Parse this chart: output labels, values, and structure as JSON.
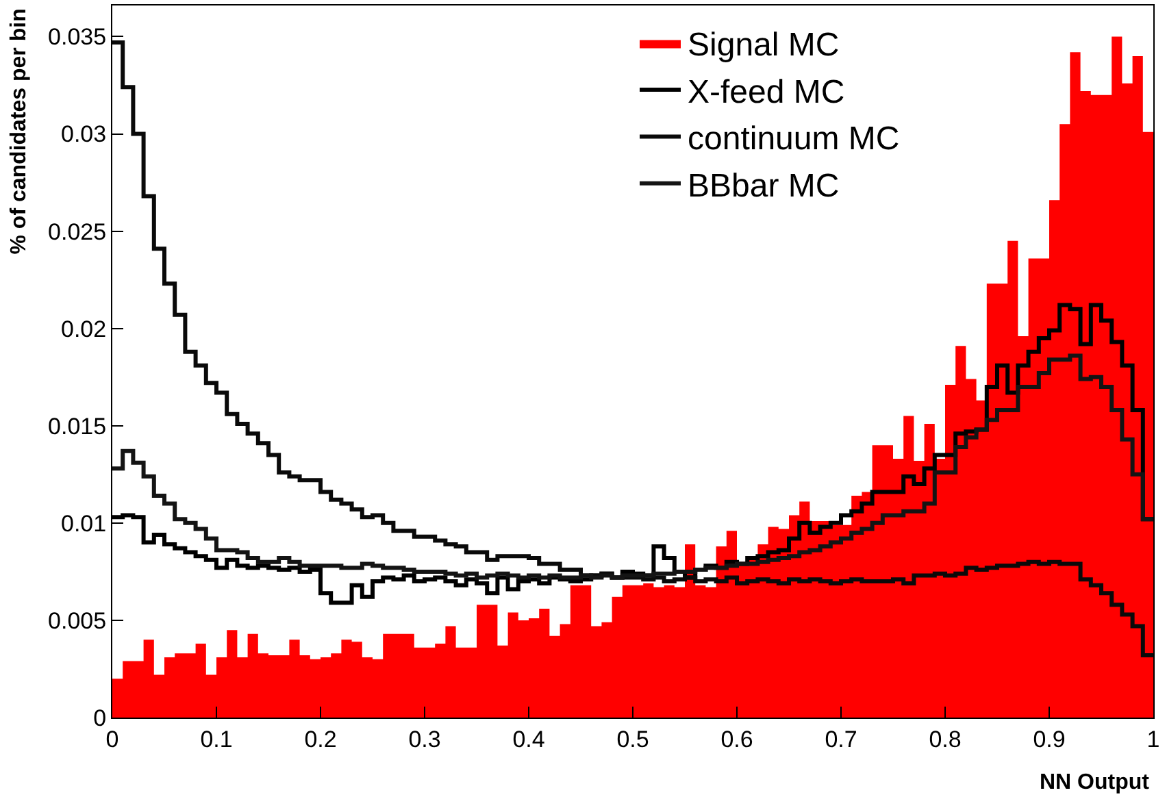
{
  "chart_data": {
    "type": "histogram",
    "xlabel": "NN Output",
    "ylabel": "% of candidates per bin",
    "bins": [
      0,
      0.01,
      0.02,
      0.03,
      0.04,
      0.05,
      0.06,
      0.07,
      0.08,
      0.09,
      0.1,
      0.11,
      0.12,
      0.13,
      0.14,
      0.15,
      0.16,
      0.17,
      0.18,
      0.19,
      0.2,
      0.21,
      0.22,
      0.23,
      0.24,
      0.25,
      0.26,
      0.27,
      0.28,
      0.29,
      0.3,
      0.31,
      0.32,
      0.33,
      0.34,
      0.35,
      0.36,
      0.37,
      0.38,
      0.39,
      0.4,
      0.41,
      0.42,
      0.43,
      0.44,
      0.45,
      0.46,
      0.47,
      0.48,
      0.49,
      0.5,
      0.51,
      0.52,
      0.53,
      0.54,
      0.55,
      0.56,
      0.57,
      0.58,
      0.59,
      0.6,
      0.61,
      0.62,
      0.63,
      0.64,
      0.65,
      0.66,
      0.67,
      0.68,
      0.69,
      0.7,
      0.71,
      0.72,
      0.73,
      0.74,
      0.75,
      0.76,
      0.77,
      0.78,
      0.79,
      0.8,
      0.81,
      0.82,
      0.83,
      0.84,
      0.85,
      0.86,
      0.87,
      0.88,
      0.89,
      0.9,
      0.91,
      0.92,
      0.93,
      0.94,
      0.95,
      0.96,
      0.97,
      0.98,
      0.99,
      1
    ],
    "series": [
      {
        "name": "Signal MC",
        "color": "#ff0000",
        "values": [
          0.002,
          0.0029,
          0.0029,
          0.004,
          0.0022,
          0.0031,
          0.0033,
          0.0033,
          0.0038,
          0.0022,
          0.0031,
          0.0045,
          0.0031,
          0.0043,
          0.0033,
          0.0032,
          0.0032,
          0.004,
          0.0032,
          0.003,
          0.0031,
          0.0033,
          0.004,
          0.0039,
          0.0031,
          0.003,
          0.0043,
          0.0043,
          0.0043,
          0.0036,
          0.0036,
          0.0038,
          0.0047,
          0.0036,
          0.0036,
          0.0058,
          0.0058,
          0.0037,
          0.0054,
          0.005,
          0.0051,
          0.0056,
          0.0042,
          0.0048,
          0.0068,
          0.0068,
          0.0047,
          0.0049,
          0.0062,
          0.0068,
          0.0068,
          0.0069,
          0.0067,
          0.0068,
          0.0067,
          0.0089,
          0.0068,
          0.0067,
          0.0088,
          0.0096,
          0.008,
          0.0081,
          0.0089,
          0.0098,
          0.0097,
          0.0104,
          0.0111,
          0.0101,
          0.0101,
          0.0099,
          0.0099,
          0.0114,
          0.0116,
          0.014,
          0.014,
          0.0133,
          0.0155,
          0.0132,
          0.0151,
          0.0133,
          0.0171,
          0.0191,
          0.0174,
          0.0163,
          0.0223,
          0.0223,
          0.0245,
          0.0196,
          0.0236,
          0.0236,
          0.0266,
          0.0305,
          0.0342,
          0.0322,
          0.032,
          0.032,
          0.035,
          0.0326,
          0.034,
          0.0301
        ]
      },
      {
        "name": "X-feed MC",
        "color": "#000000",
        "values": [
          0.0103,
          0.0104,
          0.0103,
          0.009,
          0.0094,
          0.0089,
          0.0087,
          0.0085,
          0.0083,
          0.0081,
          0.0077,
          0.0081,
          0.0078,
          0.0077,
          0.0078,
          0.0077,
          0.0076,
          0.0077,
          0.0075,
          0.0076,
          0.0064,
          0.0059,
          0.0059,
          0.0068,
          0.0062,
          0.007,
          0.0072,
          0.0071,
          0.0073,
          0.007,
          0.0071,
          0.0072,
          0.007,
          0.0068,
          0.0071,
          0.0069,
          0.0064,
          0.0072,
          0.0066,
          0.007,
          0.0071,
          0.0069,
          0.0072,
          0.0071,
          0.007,
          0.0071,
          0.0073,
          0.0074,
          0.0072,
          0.0075,
          0.0074,
          0.0073,
          0.0088,
          0.0082,
          0.0075,
          0.0072,
          0.0076,
          0.0078,
          0.0077,
          0.008,
          0.0079,
          0.0082,
          0.0083,
          0.0085,
          0.0086,
          0.0092,
          0.01,
          0.0095,
          0.0098,
          0.01,
          0.0104,
          0.0106,
          0.011,
          0.0116,
          0.0116,
          0.0116,
          0.0124,
          0.012,
          0.0128,
          0.0135,
          0.0135,
          0.0146,
          0.0147,
          0.0148,
          0.017,
          0.0181,
          0.0167,
          0.0181,
          0.0188,
          0.0195,
          0.0199,
          0.0212,
          0.021,
          0.0192,
          0.0212,
          0.0204,
          0.0193,
          0.0181,
          0.0158,
          0.0102
        ]
      },
      {
        "name": "continuum MC",
        "color": "#0a0a0a",
        "values": [
          0.0347,
          0.0324,
          0.03,
          0.0268,
          0.0241,
          0.0223,
          0.0207,
          0.0188,
          0.0181,
          0.0172,
          0.0167,
          0.0156,
          0.0151,
          0.0146,
          0.0141,
          0.0135,
          0.0126,
          0.0124,
          0.0122,
          0.0122,
          0.0116,
          0.0112,
          0.011,
          0.0107,
          0.0103,
          0.0104,
          0.01,
          0.0096,
          0.0096,
          0.0093,
          0.0093,
          0.0091,
          0.0089,
          0.0088,
          0.0085,
          0.0085,
          0.0081,
          0.0083,
          0.0083,
          0.0083,
          0.0082,
          0.0079,
          0.0079,
          0.0076,
          0.0076,
          0.0073,
          0.0073,
          0.0074,
          0.0072,
          0.0072,
          0.0072,
          0.0071,
          0.0072,
          0.007,
          0.0071,
          0.0072,
          0.007,
          0.0071,
          0.007,
          0.0072,
          0.0069,
          0.007,
          0.0071,
          0.007,
          0.0069,
          0.0071,
          0.007,
          0.0071,
          0.007,
          0.0069,
          0.007,
          0.0071,
          0.007,
          0.007,
          0.007,
          0.0071,
          0.0069,
          0.0073,
          0.0073,
          0.0074,
          0.0073,
          0.0074,
          0.0077,
          0.0076,
          0.0077,
          0.0078,
          0.0078,
          0.0079,
          0.008,
          0.0079,
          0.008,
          0.0079,
          0.0079,
          0.0071,
          0.0068,
          0.0064,
          0.0058,
          0.0053,
          0.0047,
          0.0032
        ]
      },
      {
        "name": "BBbar MC",
        "color": "#141414",
        "values": [
          0.0128,
          0.0137,
          0.0131,
          0.0124,
          0.0114,
          0.011,
          0.0102,
          0.01,
          0.0097,
          0.0092,
          0.0086,
          0.0086,
          0.0085,
          0.0082,
          0.008,
          0.008,
          0.0082,
          0.008,
          0.0078,
          0.0078,
          0.0078,
          0.0078,
          0.0077,
          0.0077,
          0.0079,
          0.0078,
          0.0077,
          0.0077,
          0.0076,
          0.0075,
          0.0075,
          0.0075,
          0.0074,
          0.0073,
          0.0074,
          0.0072,
          0.0073,
          0.0074,
          0.0073,
          0.0072,
          0.0073,
          0.0072,
          0.0073,
          0.0072,
          0.0072,
          0.0073,
          0.0072,
          0.0073,
          0.0072,
          0.0073,
          0.0073,
          0.0073,
          0.0074,
          0.0074,
          0.0075,
          0.0075,
          0.0076,
          0.0077,
          0.0077,
          0.0078,
          0.0079,
          0.0079,
          0.008,
          0.0081,
          0.0082,
          0.0083,
          0.0085,
          0.0086,
          0.0088,
          0.009,
          0.0092,
          0.0095,
          0.0097,
          0.01,
          0.0104,
          0.0104,
          0.0106,
          0.0106,
          0.011,
          0.0126,
          0.0126,
          0.0139,
          0.0144,
          0.0148,
          0.0153,
          0.0158,
          0.0158,
          0.017,
          0.017,
          0.0177,
          0.0184,
          0.0184,
          0.0186,
          0.0174,
          0.0175,
          0.017,
          0.0158,
          0.0143,
          0.0125,
          0.0102
        ]
      }
    ],
    "xlim": [
      0,
      1
    ],
    "ylim": [
      0,
      0.0366
    ],
    "xticks": [
      0,
      0.1,
      0.2,
      0.3,
      0.4,
      0.5,
      0.6,
      0.7,
      0.8,
      0.9,
      1
    ],
    "yticks": [
      0,
      0.005,
      0.01,
      0.015,
      0.02,
      0.025,
      0.03,
      0.035
    ],
    "legend": "top right"
  }
}
